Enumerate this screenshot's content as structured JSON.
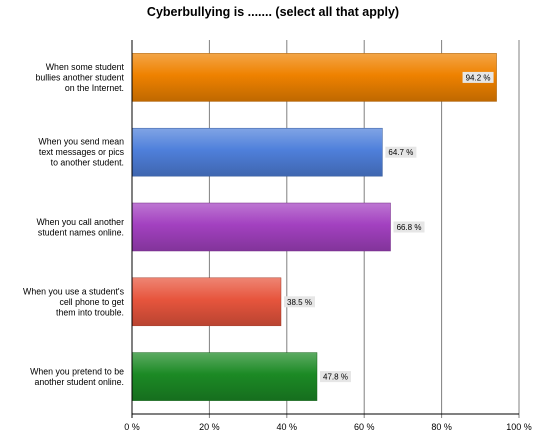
{
  "chart_data": {
    "type": "bar",
    "orientation": "horizontal",
    "title": "Cyberbullying is ....... (select all that apply)",
    "categories": [
      [
        "When some student",
        "bullies another student",
        "on the Internet."
      ],
      [
        "When you send mean",
        "text messages or pics",
        "to another student."
      ],
      [
        "When you call another",
        "student names online."
      ],
      [
        "When you use a student's",
        "cell phone to get",
        "them into trouble."
      ],
      [
        "When you pretend to be",
        "another student online."
      ]
    ],
    "values": [
      94.2,
      64.7,
      66.8,
      38.5,
      47.8
    ],
    "value_labels": [
      "94.2 %",
      "64.7 %",
      "66.8 %",
      "38.5 %",
      "47.8 %"
    ],
    "colors": [
      "#ef8200",
      "#4f80db",
      "#a341c0",
      "#e7553d",
      "#1c8a25"
    ],
    "xlim": [
      0,
      100
    ],
    "x_ticks": [
      "0 %",
      "20 %",
      "40 %",
      "60 %",
      "80 %",
      "100 %"
    ],
    "xlabel": "",
    "ylabel": "",
    "grid": true,
    "legend": "none"
  }
}
